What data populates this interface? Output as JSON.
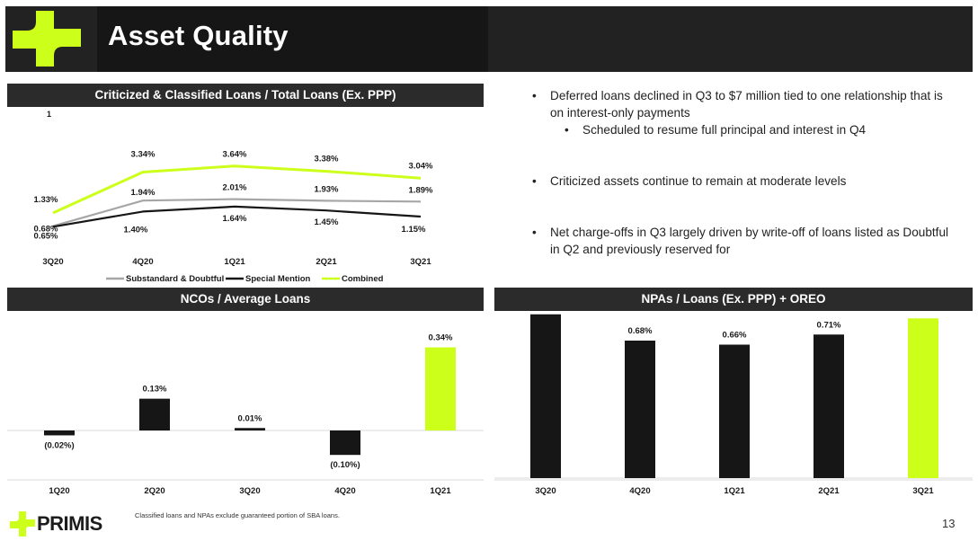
{
  "header": {
    "title": "Asset Quality"
  },
  "colors": {
    "accent": "#CCFF1A",
    "dark": "#161616",
    "gray": "#A6A6A6",
    "panel": "#2B2B2B"
  },
  "panels": {
    "criticized": {
      "title": "Criticized & Classified Loans / Total Loans (Ex. PPP)",
      "marker": "1"
    },
    "ncos": {
      "title": "NCOs / Average Loans"
    },
    "npas": {
      "title": "NPAs / Loans (Ex. PPP) + OREO"
    }
  },
  "bullets": [
    {
      "text": "Deferred loans declined in Q3 to $7 million tied to one relationship that is on interest-only payments",
      "sub": [
        "Scheduled to resume full principal and interest in Q4"
      ]
    },
    {
      "text": "Criticized assets continue to remain at moderate levels",
      "sub": []
    },
    {
      "text": "Net charge-offs in Q3 largely driven by write-off of loans listed as Doubtful in Q2 and previously reserved for",
      "sub": []
    }
  ],
  "chart_data": [
    {
      "type": "line",
      "title": "Criticized & Classified Loans / Total Loans (Ex. PPP)",
      "categories": [
        "3Q20",
        "4Q20",
        "1Q21",
        "2Q21",
        "3Q21"
      ],
      "series": [
        {
          "name": "Substandard & Doubtful",
          "color": "#A6A6A6",
          "values": [
            0.68,
            1.94,
            2.01,
            1.93,
            1.89
          ],
          "labels": [
            "0.68%",
            "1.94%",
            "2.01%",
            "1.93%",
            "1.89%"
          ]
        },
        {
          "name": "Special Mention",
          "color": "#161616",
          "values": [
            0.65,
            1.4,
            1.64,
            1.45,
            1.15
          ],
          "labels": [
            "0.65%",
            "1.40%",
            "1.64%",
            "1.45%",
            "1.15%"
          ]
        },
        {
          "name": "Combined",
          "color": "#CCFF1A",
          "values": [
            1.33,
            3.34,
            3.64,
            3.38,
            3.04
          ],
          "labels": [
            "1.33%",
            "3.34%",
            "3.64%",
            "3.38%",
            "3.04%"
          ]
        }
      ],
      "ylim": [
        0,
        4.5
      ],
      "legend": "bottom"
    },
    {
      "type": "bar",
      "title": "NCOs / Average Loans",
      "categories": [
        "1Q20",
        "2Q20",
        "3Q20",
        "4Q20",
        "1Q21"
      ],
      "values": [
        -0.02,
        0.13,
        0.01,
        -0.1,
        0.34
      ],
      "labels": [
        "(0.02%)",
        "0.13%",
        "0.01%",
        "(0.10%)",
        "0.34%"
      ],
      "highlight_last": true,
      "ylim": [
        -0.15,
        0.4
      ]
    },
    {
      "type": "bar",
      "title": "NPAs / Loans (Ex. PPP) + OREO",
      "categories": [
        "3Q20",
        "4Q20",
        "1Q21",
        "2Q21",
        "3Q21"
      ],
      "values": [
        0.81,
        0.68,
        0.66,
        0.71,
        0.79
      ],
      "labels": [
        "",
        "0.68%",
        "0.66%",
        "0.71%",
        ""
      ],
      "highlight_last": true,
      "ylim": [
        0,
        0.81
      ]
    }
  ],
  "footer": {
    "logo_text": "PRIMIS",
    "footnote": "Classified loans and NPAs exclude guaranteed portion of SBA loans.",
    "page_number": "13"
  }
}
